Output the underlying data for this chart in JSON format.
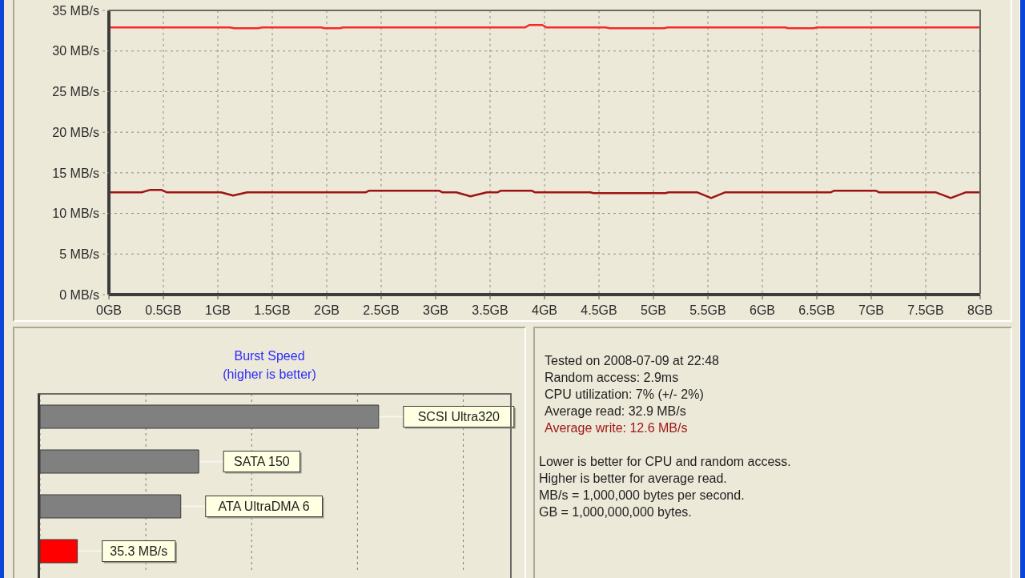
{
  "chart_data": [
    {
      "type": "line",
      "xlim": [
        0,
        8
      ],
      "ylim": [
        0,
        35
      ],
      "xticks": [
        {
          "value": 0,
          "label": "0GB"
        },
        {
          "value": 0.5,
          "label": "0.5GB"
        },
        {
          "value": 1,
          "label": "1GB"
        },
        {
          "value": 1.5,
          "label": "1.5GB"
        },
        {
          "value": 2,
          "label": "2GB"
        },
        {
          "value": 2.5,
          "label": "2.5GB"
        },
        {
          "value": 3,
          "label": "3GB"
        },
        {
          "value": 3.5,
          "label": "3.5GB"
        },
        {
          "value": 4,
          "label": "4GB"
        },
        {
          "value": 4.5,
          "label": "4.5GB"
        },
        {
          "value": 5,
          "label": "5GB"
        },
        {
          "value": 5.5,
          "label": "5.5GB"
        },
        {
          "value": 6,
          "label": "6GB"
        },
        {
          "value": 6.5,
          "label": "6.5GB"
        },
        {
          "value": 7,
          "label": "7GB"
        },
        {
          "value": 7.5,
          "label": "7.5GB"
        },
        {
          "value": 8,
          "label": "8GB"
        }
      ],
      "yticks": [
        {
          "value": 0,
          "label": "0 MB/s"
        },
        {
          "value": 5,
          "label": "5 MB/s"
        },
        {
          "value": 10,
          "label": "10 MB/s"
        },
        {
          "value": 15,
          "label": "15 MB/s"
        },
        {
          "value": 20,
          "label": "20 MB/s"
        },
        {
          "value": 25,
          "label": "25 MB/s"
        },
        {
          "value": 30,
          "label": "30 MB/s"
        },
        {
          "value": 35,
          "label": "35 MB/s"
        }
      ],
      "grid": true,
      "series": [
        {
          "type": "line",
          "color": "#f52a2a",
          "x": [
            0,
            1.11,
            1.15,
            1.37,
            1.41,
            1.95,
            1.98,
            2.12,
            2.15,
            3.82,
            3.86,
            3.98,
            4.02,
            4.56,
            4.6,
            5.1,
            5.13,
            6.21,
            6.24,
            6.47,
            6.5,
            8
          ],
          "values": [
            32.9,
            32.9,
            32.8,
            32.8,
            32.9,
            32.9,
            32.8,
            32.8,
            32.9,
            32.9,
            33.2,
            33.2,
            32.9,
            32.9,
            32.8,
            32.8,
            32.9,
            32.9,
            32.8,
            32.8,
            32.9,
            32.9
          ]
        },
        {
          "type": "line",
          "color": "#9e1414",
          "x": [
            0,
            0.3,
            0.38,
            0.48,
            0.53,
            1.03,
            1.14,
            1.27,
            2.36,
            2.39,
            3.03,
            3.06,
            3.19,
            3.32,
            3.47,
            3.57,
            3.6,
            3.88,
            3.91,
            4.42,
            4.45,
            5.11,
            5.14,
            5.4,
            5.53,
            5.66,
            6.63,
            6.66,
            7.04,
            7.07,
            7.59,
            7.73,
            7.87,
            8
          ],
          "values": [
            12.6,
            12.6,
            12.9,
            12.9,
            12.6,
            12.6,
            12.2,
            12.6,
            12.6,
            12.8,
            12.8,
            12.6,
            12.6,
            12.1,
            12.6,
            12.6,
            12.8,
            12.8,
            12.6,
            12.6,
            12.5,
            12.5,
            12.6,
            12.6,
            11.9,
            12.6,
            12.6,
            12.8,
            12.8,
            12.6,
            12.6,
            11.9,
            12.6,
            12.6
          ]
        }
      ]
    },
    {
      "type": "bar",
      "title": "Burst Speed",
      "subtitle": "(higher is better)",
      "orientation": "horizontal",
      "grid": "x",
      "xlim": [
        0,
        445
      ],
      "xticks": [
        {
          "value": 100,
          "label": null
        },
        {
          "value": 200,
          "label": null
        },
        {
          "value": 300,
          "label": null
        },
        {
          "value": 400,
          "label": null
        }
      ],
      "categories": [
        "SCSI Ultra320",
        "SATA 150",
        "ATA UltraDMA 6",
        null
      ],
      "values": [
        320,
        150,
        133,
        35.3
      ],
      "value_labels": [
        null,
        null,
        null,
        "35.3 MB/s"
      ],
      "colors": [
        "#808080",
        "#808080",
        "#808080",
        "#ff0000"
      ]
    },
    {
      "type": "other",
      "annotations": [
        "Tested on 2008-07-09 at 22:48",
        "Random access: 2.9ms",
        "CPU utilization: 7% (+/- 2%)",
        "Average read: 32.9 MB/s",
        "Average write: 12.6 MB/s",
        "Lower is better for CPU and random access.",
        "Higher is better for average read.",
        "MB/s = 1,000,000 bytes per second.",
        "GB = 1,000,000,000 bytes."
      ]
    }
  ]
}
